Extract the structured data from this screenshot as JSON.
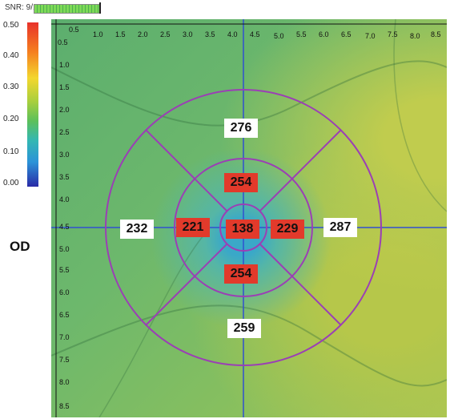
{
  "snr_label": "SNR: 9/10",
  "colorbar": {
    "labels": [
      "0.50",
      "0.40",
      "0.30",
      "0.20",
      "0.10",
      "0.00"
    ],
    "gradient": [
      "#e8322b",
      "#f3d72e",
      "#5cc05a",
      "#33b7b3",
      "#2a2aa7"
    ]
  },
  "eye_label": "OD",
  "x_ticks": [
    "0.5",
    "1.0",
    "1.5",
    "2.0",
    "2.5",
    "3.0",
    "3.5",
    "4.0",
    "4.5",
    "5.0",
    "5.5",
    "6.0",
    "6.5",
    "7.0",
    "7.5",
    "8.0",
    "8.5"
  ],
  "y_ticks": [
    "0.5",
    "1.0",
    "1.5",
    "2.0",
    "2.5",
    "3.0",
    "3.5",
    "4.0",
    "4.5",
    "5.0",
    "5.5",
    "6.0",
    "6.5",
    "7.0",
    "7.5",
    "8.0",
    "8.5"
  ],
  "thickness": {
    "center": "138",
    "inner_superior": "254",
    "inner_inferior": "254",
    "inner_temporal": "221",
    "inner_nasal": "229",
    "outer_superior": "276",
    "outer_inferior": "259",
    "outer_temporal": "232",
    "outer_nasal": "287"
  },
  "colors": {
    "grid_ring": "#9b3fb5",
    "crosshair": "#3050d0",
    "inner_highlight": "#e23a2b"
  }
}
